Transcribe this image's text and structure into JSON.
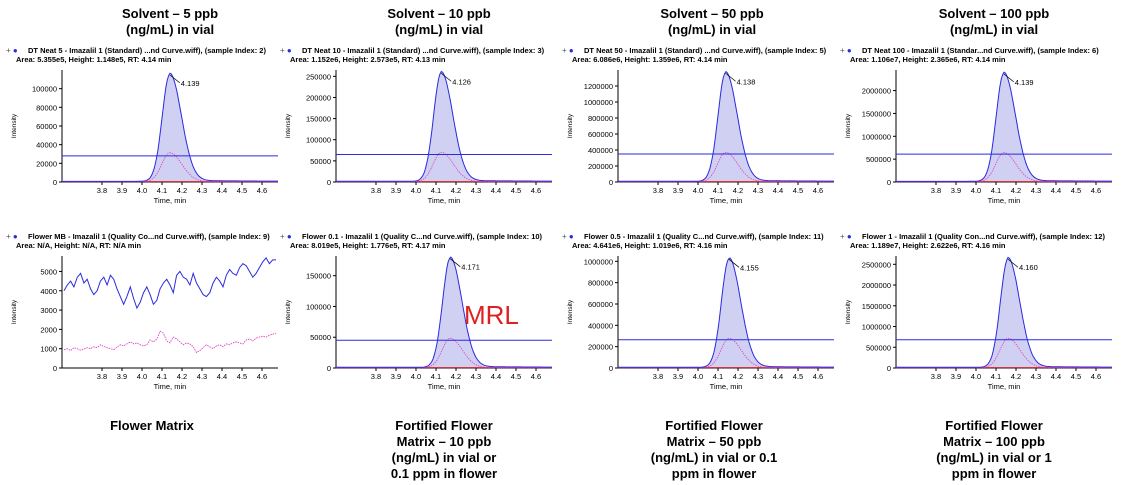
{
  "column_titles": [
    [
      "Solvent – 5 ppb",
      "(ng/mL) in vial"
    ],
    [
      "Solvent – 10 ppb",
      "(ng/mL) in vial"
    ],
    [
      "Solvent – 50 ppb",
      "(ng/mL) in vial"
    ],
    [
      "Solvent – 100 ppb",
      "(ng/mL) in vial"
    ]
  ],
  "bottom_captions": [
    [
      "Flower Matrix"
    ],
    [
      "Fortified Flower",
      "Matrix – 10 ppb",
      "(ng/mL) in vial or",
      "0.1 ppm in flower"
    ],
    [
      "Fortified Flower",
      "Matrix – 50 ppb",
      "(ng/mL) in vial or 0.1",
      "ppm in flower"
    ],
    [
      "Fortified Flower",
      "Matrix – 100 ppb",
      "(ng/mL) in vial or 1",
      "ppm in flower"
    ]
  ],
  "mrl_label": "MRL",
  "colors": {
    "blue": "#2a2ae0",
    "pink": "#e040c0",
    "red": "#d02020",
    "fill": "#c8c8f0"
  },
  "chart_data": [
    {
      "type": "line",
      "header": "DT Neat 5 - Imazalil 1 (Standard) ...nd Curve.wiff), (sample Index: 2)",
      "subheader": "Area: 5.355e5, Height: 1.148e5, RT: 4.14 min",
      "peak": true,
      "rt": 4.139,
      "rt_label": "4.139",
      "height": 114800,
      "threshold": 28000,
      "ylim": [
        0,
        120000
      ],
      "yticks": [
        0,
        20000,
        40000,
        60000,
        80000,
        100000
      ],
      "ytick_labels": [
        "0",
        "20000",
        "40000",
        "60000",
        "80000",
        "100000"
      ],
      "xlim": [
        3.6,
        4.68
      ],
      "xticks": [
        3.8,
        3.9,
        4.0,
        4.1,
        4.2,
        4.3,
        4.4,
        4.5,
        4.6
      ],
      "xtick_labels": [
        "3.8",
        "3.9",
        "4.0",
        "4.1",
        "4.2",
        "4.3",
        "4.4",
        "4.5",
        "4.6"
      ],
      "xlabel": "Time, min",
      "ylabel": "Intensity"
    },
    {
      "type": "line",
      "header": "DT Neat 10 - Imazalil 1 (Standard) ...nd Curve.wiff), (sample Index: 3)",
      "subheader": "Area: 1.152e6, Height: 2.573e5, RT: 4.13 min",
      "peak": true,
      "rt": 4.126,
      "rt_label": "4.126",
      "height": 257300,
      "threshold": 65000,
      "ylim": [
        0,
        265000
      ],
      "yticks": [
        0,
        50000,
        100000,
        150000,
        200000,
        250000
      ],
      "ytick_labels": [
        "0",
        "50000",
        "100000",
        "150000",
        "200000",
        "250000"
      ],
      "xlim": [
        3.6,
        4.68
      ],
      "xticks": [
        3.8,
        3.9,
        4.0,
        4.1,
        4.2,
        4.3,
        4.4,
        4.5,
        4.6
      ],
      "xtick_labels": [
        "3.8",
        "3.9",
        "4.0",
        "4.1",
        "4.2",
        "4.3",
        "4.4",
        "4.5",
        "4.6"
      ],
      "xlabel": "Time, min",
      "ylabel": "Intensity"
    },
    {
      "type": "line",
      "header": "DT Neat 50 - Imazalil 1 (Standard) ...nd Curve.wiff), (sample Index: 5)",
      "subheader": "Area: 6.086e6, Height: 1.359e6, RT: 4.14 min",
      "peak": true,
      "rt": 4.138,
      "rt_label": "4.138",
      "height": 1359000,
      "threshold": 350000,
      "ylim": [
        0,
        1400000
      ],
      "yticks": [
        0,
        200000,
        400000,
        600000,
        800000,
        1000000,
        1200000
      ],
      "ytick_labels": [
        "0",
        "200000",
        "400000",
        "600000",
        "800000",
        "1000000",
        "1200000"
      ],
      "xlim": [
        3.6,
        4.68
      ],
      "xticks": [
        3.8,
        3.9,
        4.0,
        4.1,
        4.2,
        4.3,
        4.4,
        4.5,
        4.6
      ],
      "xtick_labels": [
        "3.8",
        "3.9",
        "4.0",
        "4.1",
        "4.2",
        "4.3",
        "4.4",
        "4.5",
        "4.6"
      ],
      "xlabel": "Time, min",
      "ylabel": "Intensity"
    },
    {
      "type": "line",
      "header": "DT Neat 100 - Imazalil 1 (Standar...nd Curve.wiff), (sample Index: 6)",
      "subheader": "Area: 1.106e7, Height: 2.365e6, RT: 4.14 min",
      "peak": true,
      "rt": 4.139,
      "rt_label": "4.139",
      "height": 2365000,
      "threshold": 610000,
      "ylim": [
        0,
        2450000
      ],
      "yticks": [
        0,
        500000,
        1000000,
        1500000,
        2000000
      ],
      "ytick_labels": [
        "0",
        "500000",
        "1000000",
        "1500000",
        "2000000"
      ],
      "xlim": [
        3.6,
        4.68
      ],
      "xticks": [
        3.8,
        3.9,
        4.0,
        4.1,
        4.2,
        4.3,
        4.4,
        4.5,
        4.6
      ],
      "xtick_labels": [
        "3.8",
        "3.9",
        "4.0",
        "4.1",
        "4.2",
        "4.3",
        "4.4",
        "4.5",
        "4.6"
      ],
      "xlabel": "Time, min",
      "ylabel": "Intensity"
    },
    {
      "type": "line",
      "header": "Flower MB - Imazalil 1 (Quality Co...nd Curve.wiff), (sample Index: 9)",
      "subheader": "Area: N/A, Height: N/A, RT: N/A min",
      "peak": false,
      "noise_blue": [
        4000,
        4300,
        4500,
        4200,
        4700,
        4900,
        4400,
        4600,
        4100,
        3800,
        4000,
        4500,
        4700,
        4300,
        4800,
        4600,
        4100,
        3700,
        3300,
        3700,
        4200,
        3600,
        3100,
        3400,
        3900,
        4200,
        3800,
        3300,
        3500,
        4100,
        4400,
        4600,
        4300,
        3900,
        4800,
        5000,
        4700,
        4600,
        4300,
        4900,
        4400,
        4100,
        3800,
        3700,
        3900,
        4400,
        4700,
        4500,
        4200,
        4800,
        5100,
        4900,
        4800,
        5200,
        5400,
        5300,
        5000,
        4700,
        4900,
        5200,
        5500,
        5700,
        5400,
        5600,
        5600
      ],
      "noise_pink": [
        950,
        1000,
        900,
        1050,
        1000,
        920,
        980,
        1050,
        1000,
        1100,
        1050,
        1200,
        1120,
        1050,
        1000,
        950,
        1080,
        1200,
        1150,
        1250,
        1350,
        1250,
        1300,
        1200,
        1150,
        1200,
        1450,
        1350,
        1500,
        1900,
        1800,
        1400,
        1300,
        1600,
        1500,
        1350,
        1200,
        1300,
        1250,
        1100,
        800,
        900,
        1050,
        1200,
        1100,
        1000,
        1150,
        1200,
        1100,
        1250,
        1200,
        1300,
        1350,
        1300,
        1250,
        1450,
        1500,
        1400,
        1550,
        1600,
        1650,
        1600,
        1700,
        1750,
        1800
      ],
      "ylim": [
        0,
        5800
      ],
      "yticks": [
        0,
        1000,
        2000,
        3000,
        4000,
        5000
      ],
      "ytick_labels": [
        "0",
        "1000",
        "2000",
        "3000",
        "4000",
        "5000"
      ],
      "xlim": [
        3.6,
        4.68
      ],
      "xticks": [
        3.8,
        3.9,
        4.0,
        4.1,
        4.2,
        4.3,
        4.4,
        4.5,
        4.6
      ],
      "xtick_labels": [
        "3.8",
        "3.9",
        "4.0",
        "4.1",
        "4.2",
        "4.3",
        "4.4",
        "4.5",
        "4.6"
      ],
      "xlabel": "Time, min",
      "ylabel": "Intensity"
    },
    {
      "type": "line",
      "header": "Flower 0.1 - Imazalil 1 (Quality C...nd Curve.wiff), (sample Index: 10)",
      "subheader": "Area: 8.019e5, Height: 1.776e5, RT: 4.17 min",
      "peak": true,
      "rt": 4.171,
      "rt_label": "4.171",
      "height": 177600,
      "threshold": 45000,
      "ylim": [
        0,
        182000
      ],
      "yticks": [
        0,
        50000,
        100000,
        150000
      ],
      "ytick_labels": [
        "0",
        "50000",
        "100000",
        "150000"
      ],
      "xlim": [
        3.6,
        4.68
      ],
      "xticks": [
        3.8,
        3.9,
        4.0,
        4.1,
        4.2,
        4.3,
        4.4,
        4.5,
        4.6
      ],
      "xtick_labels": [
        "3.8",
        "3.9",
        "4.0",
        "4.1",
        "4.2",
        "4.3",
        "4.4",
        "4.5",
        "4.6"
      ],
      "xlabel": "Time, min",
      "ylabel": "Intensity"
    },
    {
      "type": "line",
      "header": "Flower 0.5 - Imazalil 1 (Quality C...nd Curve.wiff), (sample Index: 11)",
      "subheader": "Area: 4.641e6, Height: 1.019e6, RT: 4.16 min",
      "peak": true,
      "rt": 4.155,
      "rt_label": "4.155",
      "height": 1019000,
      "threshold": 265000,
      "ylim": [
        0,
        1050000
      ],
      "yticks": [
        0,
        200000,
        400000,
        600000,
        800000,
        1000000
      ],
      "ytick_labels": [
        "0",
        "200000",
        "400000",
        "600000",
        "800000",
        "1000000"
      ],
      "xlim": [
        3.6,
        4.68
      ],
      "xticks": [
        3.8,
        3.9,
        4.0,
        4.1,
        4.2,
        4.3,
        4.4,
        4.5,
        4.6
      ],
      "xtick_labels": [
        "3.8",
        "3.9",
        "4.0",
        "4.1",
        "4.2",
        "4.3",
        "4.4",
        "4.5",
        "4.6"
      ],
      "xlabel": "Time, min",
      "ylabel": "Intensity"
    },
    {
      "type": "line",
      "header": "Flower 1 - Imazalil 1 (Quality Con...nd Curve.wiff), (sample Index: 12)",
      "subheader": "Area: 1.189e7, Height: 2.622e6, RT: 4.16 min",
      "peak": true,
      "rt": 4.16,
      "rt_label": "4.160",
      "height": 2622000,
      "threshold": 680000,
      "ylim": [
        0,
        2700000
      ],
      "yticks": [
        0,
        500000,
        1000000,
        1500000,
        2000000,
        2500000
      ],
      "ytick_labels": [
        "0",
        "500000",
        "1000000",
        "1500000",
        "2000000",
        "2500000"
      ],
      "xlim": [
        3.6,
        4.68
      ],
      "xticks": [
        3.8,
        3.9,
        4.0,
        4.1,
        4.2,
        4.3,
        4.4,
        4.5,
        4.6
      ],
      "xtick_labels": [
        "3.8",
        "3.9",
        "4.0",
        "4.1",
        "4.2",
        "4.3",
        "4.4",
        "4.5",
        "4.6"
      ],
      "xlabel": "Time, min",
      "ylabel": "Intensity"
    }
  ]
}
